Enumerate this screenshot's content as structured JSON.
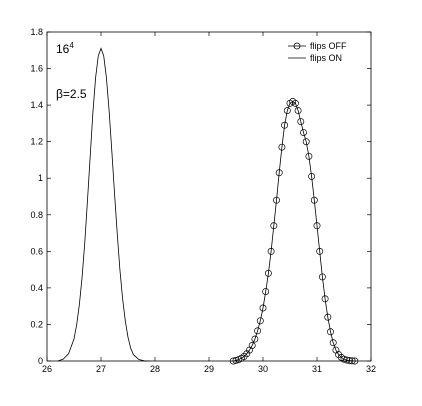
{
  "chart_data": {
    "type": "line",
    "title": "",
    "xlabel": "",
    "ylabel": "",
    "xlim": [
      26,
      32
    ],
    "ylim": [
      0,
      1.8
    ],
    "grid": false,
    "legend": "top-right",
    "x_ticks": [
      "26",
      "27",
      "28",
      "29",
      "30",
      "31",
      "32"
    ],
    "y_ticks": [
      "0",
      "0.2",
      "0.4",
      "0.6",
      "0.8",
      "1",
      "1.2",
      "1.4",
      "1.6",
      "1.8"
    ],
    "annotations": {
      "lattice_base": "16",
      "lattice_exp": "4",
      "beta": "β=2.5"
    },
    "series": [
      {
        "name": "flips OFF",
        "marker": "circle",
        "color": "#000000",
        "x": [
          29.45,
          29.5,
          29.55,
          29.6,
          29.65,
          29.7,
          29.75,
          29.8,
          29.85,
          29.9,
          29.95,
          30.0,
          30.05,
          30.1,
          30.15,
          30.2,
          30.25,
          30.3,
          30.35,
          30.4,
          30.45,
          30.5,
          30.55,
          30.6,
          30.65,
          30.7,
          30.75,
          30.8,
          30.85,
          30.9,
          30.95,
          31.0,
          31.05,
          31.1,
          31.15,
          31.2,
          31.25,
          31.3,
          31.35,
          31.4,
          31.45,
          31.5,
          31.55,
          31.6,
          31.65,
          31.7
        ],
        "y": [
          0.0,
          0.003,
          0.008,
          0.015,
          0.025,
          0.04,
          0.06,
          0.085,
          0.12,
          0.165,
          0.22,
          0.29,
          0.38,
          0.48,
          0.6,
          0.74,
          0.88,
          1.03,
          1.17,
          1.29,
          1.37,
          1.41,
          1.42,
          1.41,
          1.37,
          1.31,
          1.25,
          1.2,
          1.12,
          1.01,
          0.88,
          0.74,
          0.6,
          0.46,
          0.34,
          0.24,
          0.16,
          0.1,
          0.06,
          0.035,
          0.02,
          0.01,
          0.005,
          0.002,
          0.001,
          0.0
        ]
      },
      {
        "name": "flips ON",
        "marker": "none",
        "color": "#000000",
        "x": [
          26.2,
          26.3,
          26.4,
          26.5,
          26.55,
          26.6,
          26.65,
          26.7,
          26.75,
          26.8,
          26.85,
          26.9,
          26.95,
          27.0,
          27.05,
          27.1,
          27.15,
          27.2,
          27.25,
          27.3,
          27.35,
          27.4,
          27.45,
          27.5,
          27.55,
          27.6,
          27.7,
          27.8,
          27.9
        ],
        "y": [
          0.0,
          0.01,
          0.04,
          0.12,
          0.2,
          0.31,
          0.46,
          0.65,
          0.88,
          1.12,
          1.36,
          1.55,
          1.67,
          1.71,
          1.67,
          1.55,
          1.37,
          1.15,
          0.92,
          0.7,
          0.5,
          0.34,
          0.22,
          0.13,
          0.07,
          0.035,
          0.008,
          0.001,
          0.0
        ]
      }
    ]
  }
}
